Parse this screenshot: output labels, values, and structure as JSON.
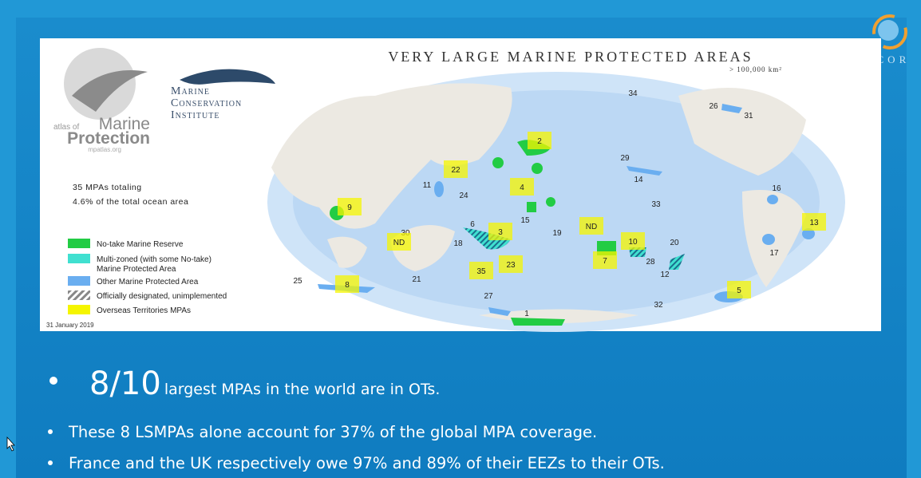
{
  "logo": {
    "text": "ANCOR"
  },
  "map": {
    "title": "VERY LARGE MARINE PROTECTED AREAS",
    "subtitle": "> 100,000 km²",
    "atlas": {
      "prefix": "atlas of",
      "line1": "Marine",
      "line2": "Protection",
      "url": "mpatlas.org"
    },
    "institute": [
      "Marine",
      "Conservation",
      "Institute"
    ],
    "summary": [
      "35 MPAs totaling",
      "4.6% of the total ocean area"
    ],
    "legend": [
      {
        "label": [
          "No-take Marine Reserve"
        ],
        "color": "#22cc44"
      },
      {
        "label": [
          "Multi-zoned (with some No-take)",
          "Marine Protected Area"
        ],
        "color": "#40e0d0"
      },
      {
        "label": [
          "Other Marine Protected Area"
        ],
        "color": "#6aaef0"
      },
      {
        "label": [
          "Officially designated, unimplemented"
        ],
        "color": "hatch"
      },
      {
        "label": [
          "Overseas Territories MPAs"
        ],
        "color": "#f5f500"
      }
    ],
    "date": "31 January 2019",
    "labels": [
      {
        "text": "34",
        "ot": false
      },
      {
        "text": "26",
        "ot": false
      },
      {
        "text": "31",
        "ot": false
      },
      {
        "text": "2",
        "ot": true
      },
      {
        "text": "22",
        "ot": true
      },
      {
        "text": "29",
        "ot": false
      },
      {
        "text": "14",
        "ot": false
      },
      {
        "text": "11",
        "ot": false
      },
      {
        "text": "24",
        "ot": false
      },
      {
        "text": "4",
        "ot": true
      },
      {
        "text": "16",
        "ot": false
      },
      {
        "text": "33",
        "ot": false
      },
      {
        "text": "9",
        "ot": true
      },
      {
        "text": "15",
        "ot": false
      },
      {
        "text": "13",
        "ot": true
      },
      {
        "text": "6",
        "ot": false
      },
      {
        "text": "ND",
        "ot": true
      },
      {
        "text": "3",
        "ot": true
      },
      {
        "text": "30",
        "ot": false
      },
      {
        "text": "ND",
        "ot": true
      },
      {
        "text": "19",
        "ot": false
      },
      {
        "text": "18",
        "ot": false
      },
      {
        "text": "10",
        "ot": true
      },
      {
        "text": "20",
        "ot": false
      },
      {
        "text": "17",
        "ot": false
      },
      {
        "text": "7",
        "ot": true
      },
      {
        "text": "28",
        "ot": false
      },
      {
        "text": "23",
        "ot": true
      },
      {
        "text": "12",
        "ot": false
      },
      {
        "text": "35",
        "ot": true
      },
      {
        "text": "21",
        "ot": false
      },
      {
        "text": "25",
        "ot": false
      },
      {
        "text": "8",
        "ot": true
      },
      {
        "text": "5",
        "ot": true
      },
      {
        "text": "27",
        "ot": false
      },
      {
        "text": "32",
        "ot": false
      },
      {
        "text": "1",
        "ot": false
      }
    ]
  },
  "bullets": {
    "main": {
      "big": "8/10",
      "rest": "largest MPAs in the world are in OTs."
    },
    "items": [
      "These 8 LSMPAs alone account for 37% of the global MPA coverage.",
      "France and the UK respectively owe 97% and 89% of their EEZs to their OTs."
    ]
  }
}
